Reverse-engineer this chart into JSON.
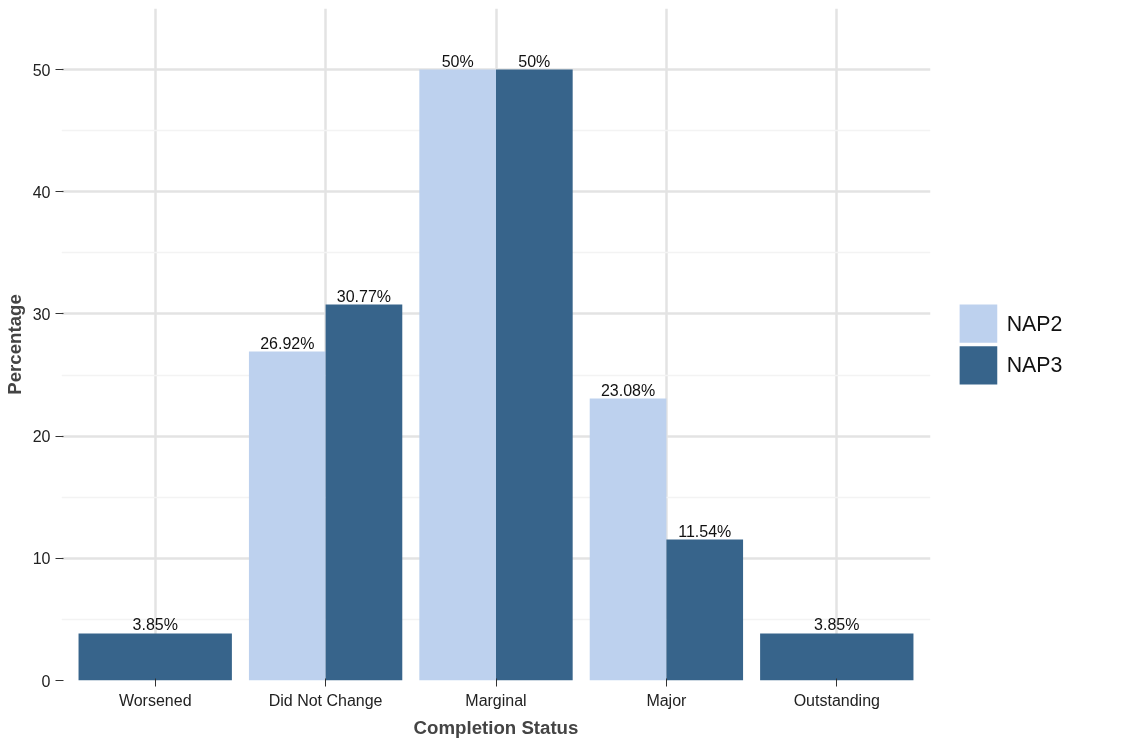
{
  "chart_data": {
    "type": "bar",
    "xlabel": "Completion Status",
    "ylabel": "Percentage",
    "categories": [
      "Worsened",
      "Did Not Change",
      "Marginal",
      "Major",
      "Outstanding"
    ],
    "series": [
      {
        "name": "NAP2",
        "color": "#bdd1ee",
        "values": [
          null,
          26.92,
          50,
          23.08,
          null
        ],
        "value_labels": [
          null,
          "26.92%",
          "50%",
          "23.08%",
          null
        ]
      },
      {
        "name": "NAP3",
        "color": "#37648b",
        "values": [
          3.85,
          30.77,
          50,
          11.54,
          3.85
        ],
        "value_labels": [
          "3.85%",
          "30.77%",
          "50%",
          "11.54%",
          "3.85%"
        ]
      }
    ],
    "ylim": [
      0,
      55
    ],
    "yticks": [
      0,
      10,
      20,
      30,
      40,
      50
    ],
    "grid": true,
    "legend": "right"
  }
}
